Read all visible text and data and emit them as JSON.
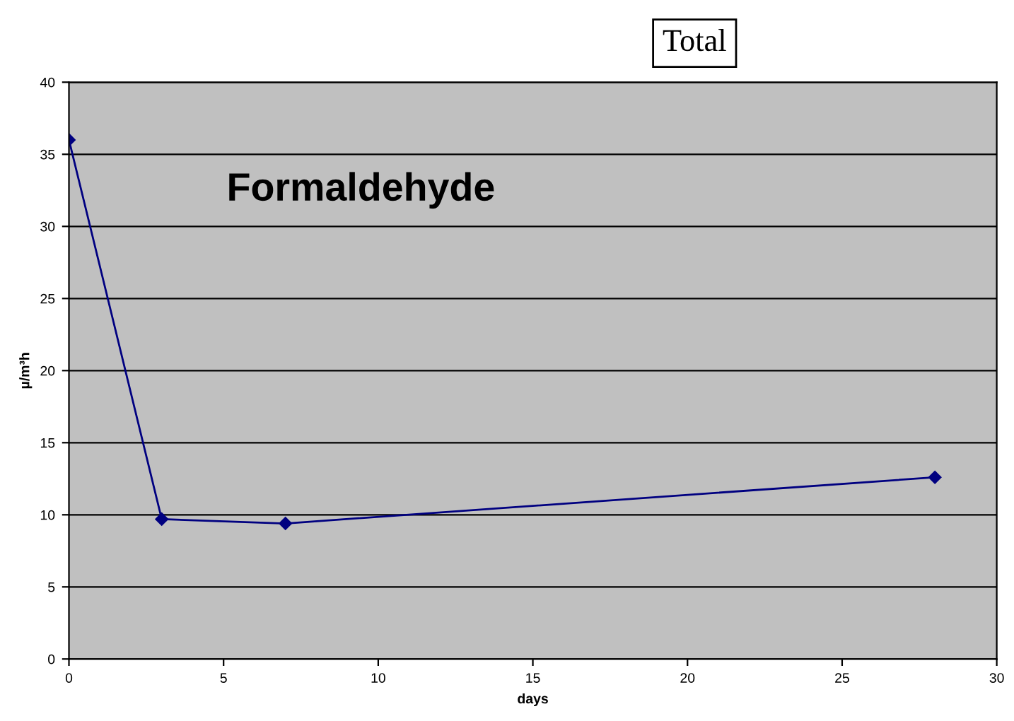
{
  "chart_data": {
    "type": "line",
    "title": "Formaldehyde",
    "xlabel": "days",
    "ylabel": "µ/m³h",
    "x": [
      0,
      3,
      7,
      28
    ],
    "series": [
      {
        "color": "#000080",
        "values": [
          36,
          9.7,
          9.4,
          12.6
        ]
      }
    ],
    "xlim": [
      0,
      30
    ],
    "xticks": [
      0,
      5,
      10,
      15,
      20,
      25,
      30
    ],
    "ylim": [
      0,
      40
    ],
    "yticks": [
      0,
      5,
      10,
      15,
      20,
      25,
      30,
      35,
      40
    ],
    "grid": "y",
    "marker": "diamond",
    "line_style": "solid",
    "legend": false,
    "annotations": [
      "Total"
    ]
  }
}
